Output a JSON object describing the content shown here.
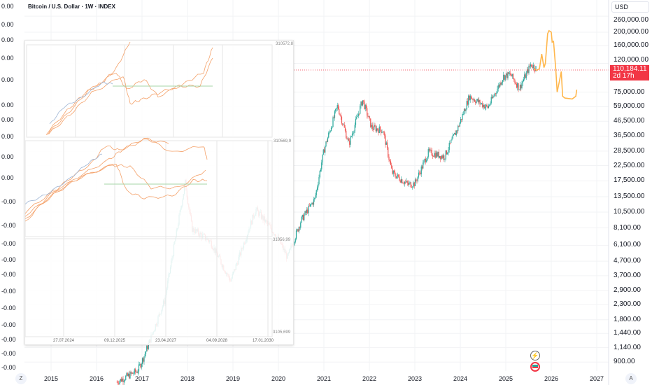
{
  "header": {
    "title": "Bitcoin / U.S. Dollar · 1W · INDEX"
  },
  "price_axis": {
    "currency": "USD",
    "ticks": [
      "260,000.00",
      "200,000.00",
      "160,000.00",
      "120,000.00",
      "75,000.00",
      "59,000.00",
      "46,500.00",
      "36,500.00",
      "28,500.00",
      "22,500.00",
      "17,500.00",
      "13,500.00",
      "10,500.00",
      "8,100.00",
      "6,100.00",
      "4,700.00",
      "3,700.00",
      "2,900.00",
      "2,300.00",
      "1,800.00",
      "1,440.00",
      "1,140.00",
      "900.00"
    ],
    "tick_values": [
      260000,
      200000,
      160000,
      120000,
      75000,
      59000,
      46500,
      36500,
      28500,
      22500,
      17500,
      13500,
      10500,
      8100,
      6100,
      4700,
      3700,
      2900,
      2300,
      1800,
      1440,
      1140,
      900
    ]
  },
  "last_price": {
    "value": "110,184.11",
    "countdown": "2d 17h",
    "color": "#f23645"
  },
  "time_axis": {
    "years": [
      "2015",
      "2016",
      "2017",
      "2018",
      "2019",
      "2020",
      "2021",
      "2022",
      "2023",
      "2024",
      "2025",
      "2026",
      "2027"
    ]
  },
  "left_axis": {
    "labels": [
      "0.00",
      "0.00",
      "0.00",
      "0.00",
      "0.00",
      "0.00",
      "0.00",
      "0.00",
      "0.00",
      "0.00",
      "-0.00",
      "-0.00",
      "-0.00",
      "-0.00",
      "-0.00",
      "-0.00",
      "-0.00",
      "-0.00",
      "-0.00",
      "-0.00",
      "-0.00"
    ]
  },
  "overlay": {
    "labels": [
      "310572,8",
      "310569,9",
      "31056,99",
      "3105,699"
    ],
    "dates": [
      "27.07.2024",
      "09.12.2025",
      "23.04.2027",
      "04.09.2028",
      "17.01.2030"
    ]
  },
  "corner_buttons": {
    "left": "Z",
    "right": "A"
  },
  "colors": {
    "up": "#26a69a",
    "down": "#ef5350",
    "projection": "#ffb74d",
    "overlay_line": "#f4a26b"
  },
  "chart_data": {
    "type": "candlestick",
    "scale": "log",
    "ylim": [
      800,
      280000
    ],
    "xlim": [
      2014.7,
      2027.3
    ],
    "price_path": [
      [
        2016.45,
        650
      ],
      [
        2016.9,
        780
      ],
      [
        2017.05,
        1000
      ],
      [
        2017.5,
        2500
      ],
      [
        2017.95,
        17000
      ],
      [
        2018.1,
        8000
      ],
      [
        2018.5,
        6500
      ],
      [
        2018.95,
        3400
      ],
      [
        2019.5,
        11000
      ],
      [
        2019.95,
        7200
      ],
      [
        2020.2,
        5000
      ],
      [
        2020.5,
        9200
      ],
      [
        2020.8,
        13000
      ],
      [
        2021.0,
        29000
      ],
      [
        2021.3,
        60000
      ],
      [
        2021.55,
        32000
      ],
      [
        2021.85,
        66000
      ],
      [
        2022.05,
        42000
      ],
      [
        2022.3,
        40000
      ],
      [
        2022.5,
        20000
      ],
      [
        2022.85,
        16500
      ],
      [
        2023.0,
        16800
      ],
      [
        2023.3,
        28000
      ],
      [
        2023.65,
        26000
      ],
      [
        2023.95,
        42000
      ],
      [
        2024.2,
        70000
      ],
      [
        2024.6,
        58000
      ],
      [
        2024.95,
        97000
      ],
      [
        2025.1,
        100000
      ],
      [
        2025.3,
        80000
      ],
      [
        2025.55,
        118000
      ],
      [
        2025.68,
        110184
      ]
    ],
    "projection": [
      [
        2025.62,
        110000
      ],
      [
        2025.68,
        107000
      ],
      [
        2025.74,
        110000
      ],
      [
        2025.79,
        140000
      ],
      [
        2025.84,
        112000
      ],
      [
        2025.87,
        120000
      ],
      [
        2025.92,
        195000
      ],
      [
        2025.95,
        205000
      ],
      [
        2026.0,
        200000
      ],
      [
        2026.02,
        170000
      ],
      [
        2026.05,
        172000
      ],
      [
        2026.1,
        108000
      ],
      [
        2026.13,
        75000
      ],
      [
        2026.18,
        90000
      ],
      [
        2026.22,
        105000
      ],
      [
        2026.25,
        70000
      ],
      [
        2026.3,
        68000
      ],
      [
        2026.46,
        67000
      ],
      [
        2026.54,
        70000
      ],
      [
        2026.56,
        78000
      ]
    ]
  }
}
